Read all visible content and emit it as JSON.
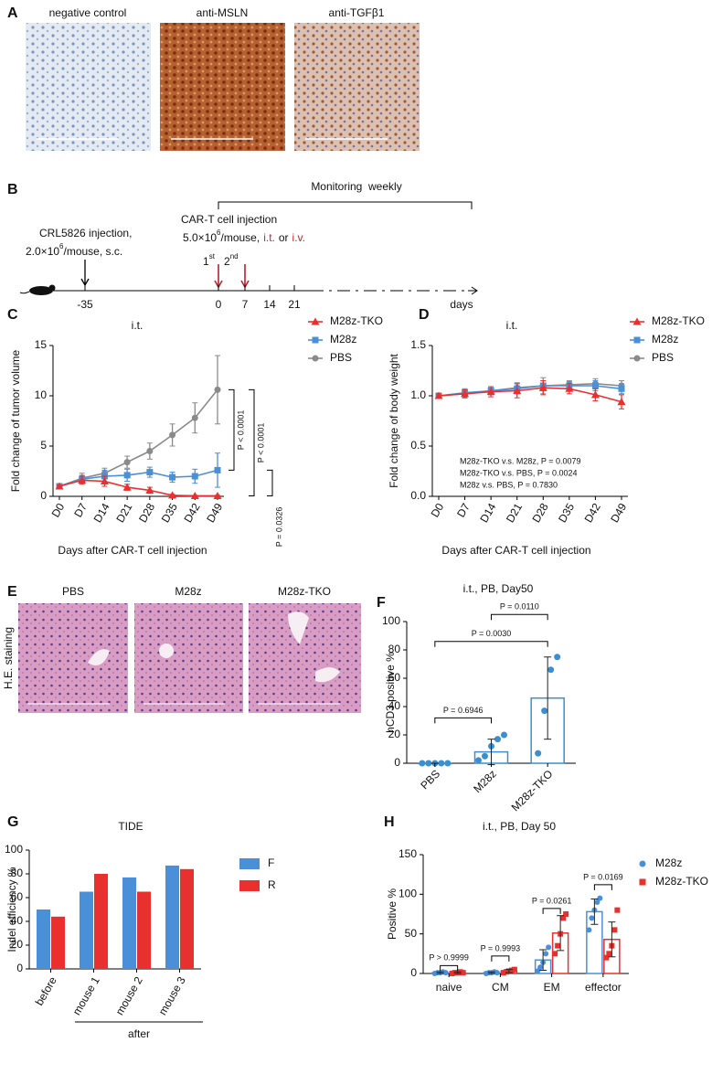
{
  "figure": {
    "panel_labels": [
      "A",
      "B",
      "C",
      "D",
      "E",
      "F",
      "G",
      "H"
    ],
    "ihc": {
      "labels": [
        "negative control",
        "anti-MSLN",
        "anti-TGFβ1"
      ]
    },
    "schedule": {
      "monitoring": "Monitoring  weekly",
      "crl_line1": "CRL5826 injection,",
      "crl_dose": "2.0×10",
      "crl_exp": "6",
      "crl_rest": "/mouse, s.c.",
      "cart_line1": "CAR-T cell injection",
      "cart_dose": "5.0×10",
      "cart_exp": "6",
      "cart_rest": "/mouse,",
      "it": "i.t.",
      "or": "or",
      "iv": "i.v.",
      "first": "1",
      "first_sup": "st",
      "second": "2",
      "second_sup": "nd",
      "ticks": [
        "-35",
        "0",
        "7",
        "14",
        "21"
      ],
      "unit": "days"
    },
    "he": {
      "labels": [
        "PBS",
        "M28z",
        "M28z-TKO"
      ],
      "stain": "H.E. staining"
    }
  },
  "chart_data": [
    {
      "type": "line",
      "title": "i.t.",
      "x_label": "Days after CAR-T cell injection",
      "y_label": "Fold change of tumor volume",
      "categories": [
        "D0",
        "D7",
        "D14",
        "D21",
        "D28",
        "D35",
        "D42",
        "D49"
      ],
      "ylim": [
        0,
        15
      ],
      "yticks": [
        0,
        5,
        10,
        15
      ],
      "series": [
        {
          "name": "M28z-TKO",
          "color": "#e8312f",
          "marker": "triangle",
          "values": [
            1,
            1.6,
            1.5,
            0.9,
            0.6,
            0.1,
            0.05,
            0.05
          ],
          "errors": [
            0.1,
            0.4,
            0.5,
            0.3,
            0.3,
            0.1,
            0.05,
            0.05
          ]
        },
        {
          "name": "M28z",
          "color": "#4a90d9",
          "marker": "square",
          "values": [
            1,
            1.7,
            2.0,
            2.1,
            2.4,
            1.9,
            2.0,
            2.6
          ],
          "errors": [
            0.1,
            0.4,
            0.6,
            0.6,
            0.5,
            0.5,
            0.7,
            1.7
          ]
        },
        {
          "name": "PBS",
          "color": "#8a8a8a",
          "marker": "circle",
          "values": [
            1,
            1.8,
            2.3,
            3.4,
            4.5,
            6.1,
            7.8,
            10.6
          ],
          "errors": [
            0.1,
            0.5,
            0.5,
            0.6,
            0.8,
            1.1,
            1.5,
            3.4
          ]
        }
      ],
      "annotations": [
        "P < 0.0001",
        "P < 0.0001",
        "P = 0.0326"
      ]
    },
    {
      "type": "line",
      "title": "i.t.",
      "x_label": "Days after CAR-T cell injection",
      "y_label": "Fold change of body weight",
      "categories": [
        "D0",
        "D7",
        "D14",
        "D21",
        "D28",
        "D35",
        "D42",
        "D49"
      ],
      "ylim": [
        0,
        1.5
      ],
      "yticks": [
        {
          "value": 0,
          "label": "0.0"
        },
        0.5,
        {
          "value": 1,
          "label": "1.0"
        },
        1.5
      ],
      "series": [
        {
          "name": "M28z-TKO",
          "color": "#e8312f",
          "marker": "triangle",
          "values": [
            1,
            1.02,
            1.04,
            1.05,
            1.08,
            1.07,
            1.01,
            0.94
          ],
          "errors": [
            0.02,
            0.04,
            0.05,
            0.07,
            0.07,
            0.05,
            0.06,
            0.07
          ]
        },
        {
          "name": "M28z",
          "color": "#4a90d9",
          "marker": "square",
          "values": [
            1,
            1.03,
            1.05,
            1.07,
            1.1,
            1.1,
            1.1,
            1.07
          ],
          "errors": [
            0.02,
            0.04,
            0.04,
            0.05,
            0.05,
            0.04,
            0.05,
            0.05
          ]
        },
        {
          "name": "PBS",
          "color": "#8a8a8a",
          "marker": "circle",
          "values": [
            1,
            1.02,
            1.05,
            1.08,
            1.1,
            1.11,
            1.12,
            1.1
          ],
          "errors": [
            0.02,
            0.04,
            0.04,
            0.05,
            0.08,
            0.04,
            0.05,
            0.05
          ]
        }
      ],
      "notes": [
        "M28z-TKO v.s. M28z, P = 0.0079",
        "M28z-TKO v.s. PBS, P = 0.0024",
        "M28z v.s. PBS, P = 0.7830"
      ]
    },
    {
      "type": "bar",
      "title": "i.t., PB, Day50",
      "y_label": "hCD3 positive %",
      "categories": [
        "PBS",
        "M28z",
        "M28z-TKO"
      ],
      "values": [
        0,
        8,
        46
      ],
      "errors": [
        0,
        9,
        29
      ],
      "points": [
        [
          0,
          0,
          0,
          0,
          0
        ],
        [
          2,
          5,
          12,
          17,
          20
        ],
        [
          7,
          37,
          66,
          75
        ]
      ],
      "color": "#3a8fd0",
      "bar_style": "outline",
      "ylim": [
        0,
        100
      ],
      "yticks": [
        0,
        20,
        40,
        60,
        80,
        100
      ],
      "annotations": [
        "P = 0.6946",
        "P = 0.0030",
        "P = 0.0110"
      ]
    },
    {
      "type": "bar",
      "title": "TIDE",
      "y_label": "Indel efficiency %",
      "categories": [
        "before",
        "mouse 1",
        "mouse 2",
        "mouse 3"
      ],
      "group_label": "after",
      "series": [
        {
          "name": "F",
          "color": "#4a90d9",
          "values": [
            50,
            65,
            77,
            87
          ]
        },
        {
          "name": "R",
          "color": "#e8312f",
          "values": [
            44,
            80,
            65,
            84
          ]
        }
      ],
      "bar_style": "solid",
      "ylim": [
        0,
        100
      ],
      "yticks": [
        0,
        20,
        40,
        60,
        80,
        100
      ]
    },
    {
      "type": "bar",
      "title": "i.t., PB, Day 50",
      "y_label": "Positive %",
      "categories": [
        "naive",
        "CM",
        "EM",
        "effector"
      ],
      "series": [
        {
          "name": "M28z",
          "color": "#4a90d9",
          "marker": "circle",
          "values": [
            1,
            1,
            17,
            78
          ],
          "errors": [
            1,
            1,
            13,
            16
          ],
          "points": [
            [
              0,
              1,
              1,
              2,
              1
            ],
            [
              0,
              1,
              1,
              2,
              1
            ],
            [
              3,
              8,
              14,
              25,
              33
            ],
            [
              55,
              70,
              80,
              90,
              95
            ]
          ]
        },
        {
          "name": "M28z-TKO",
          "color": "#e8312f",
          "marker": "square",
          "values": [
            1,
            3,
            51,
            43
          ],
          "errors": [
            1,
            2,
            22,
            22
          ],
          "points": [
            [
              0,
              1,
              1,
              2,
              1
            ],
            [
              1,
              2,
              3,
              4,
              5
            ],
            [
              25,
              35,
              50,
              70,
              75
            ],
            [
              20,
              25,
              35,
              55,
              80
            ]
          ]
        }
      ],
      "bar_style": "outline",
      "ylim": [
        0,
        150
      ],
      "yticks": [
        0,
        50,
        100,
        150
      ],
      "annotations": [
        "P > 0.9999",
        "P = 0.9993",
        "P = 0.0261",
        "P = 0.0169"
      ]
    }
  ]
}
